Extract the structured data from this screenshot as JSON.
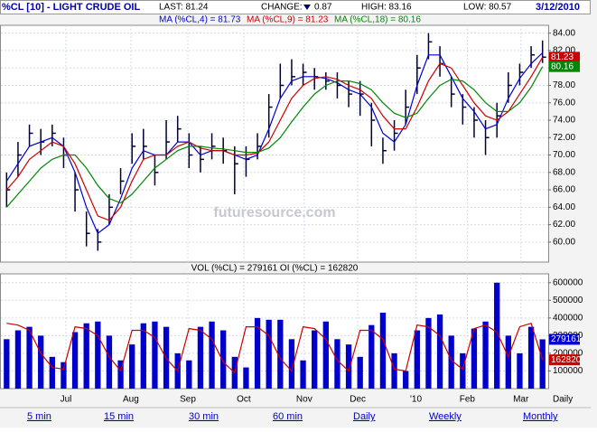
{
  "chart_data": [
    {
      "type": "ohlc",
      "title": "%CL [10] - LIGHT CRUDE OIL",
      "header": [
        "LAST: 81.24",
        "CHANGE:",
        "0.87",
        "HIGH: 83.16",
        "LOW: 80.57",
        "3/12/2010"
      ],
      "watermark": "futuresource.com",
      "color": "#000033",
      "high": [
        68,
        71.5,
        73.5,
        73,
        73.5,
        72,
        68,
        63.5,
        61.5,
        65.5,
        68.5,
        72.5,
        73,
        70,
        74,
        74.5,
        72.5,
        71,
        72.5,
        72,
        71,
        71,
        72.5,
        77,
        80.5,
        81,
        80.5,
        80,
        79.5,
        79.5,
        78.5,
        78.5,
        76,
        72,
        74,
        77.5,
        81.5,
        84,
        82.5,
        79,
        77,
        75.5,
        74,
        76,
        79.5,
        80.5,
        82.5,
        83.16
      ],
      "low": [
        64,
        67.5,
        71,
        70,
        71,
        68.5,
        63.5,
        59.5,
        59,
        62,
        65.5,
        69,
        69.5,
        66.5,
        69.5,
        71.5,
        68.5,
        68,
        69.5,
        69,
        65.5,
        67.5,
        69.5,
        72,
        76.5,
        78,
        78,
        77.5,
        77.5,
        76.5,
        75.5,
        74.5,
        71,
        69,
        70.5,
        73.5,
        77,
        81,
        79,
        75.5,
        73.5,
        72,
        70,
        72,
        76,
        78,
        80,
        80.57
      ],
      "close": [
        66,
        70,
        72.5,
        71.5,
        72.5,
        70,
        66,
        61,
        60,
        64,
        67,
        71,
        71,
        68,
        71.5,
        73,
        70,
        69.5,
        71,
        70.5,
        69,
        69.5,
        71,
        75.5,
        78,
        79,
        79.5,
        79,
        78.5,
        78,
        77,
        77,
        74,
        70.5,
        72.5,
        75.5,
        80,
        83,
        80.5,
        77,
        75.5,
        74,
        72,
        74.5,
        78,
        79.5,
        81.5,
        81.24
      ],
      "series": [
        {
          "name": "MA (%CL,4) = 81.73",
          "color": "#0000cc",
          "values": [
            67,
            69,
            71,
            71.5,
            72,
            71,
            68,
            64,
            61,
            62,
            65,
            68.5,
            70.5,
            70,
            70,
            71.5,
            71.5,
            70,
            70.5,
            70.5,
            70,
            69.5,
            70,
            73,
            76.5,
            78.5,
            79,
            79,
            78.8,
            78.3,
            77.5,
            77,
            75.5,
            72.5,
            71.5,
            73.5,
            78,
            81.5,
            81.5,
            79,
            76.5,
            75,
            73,
            73.5,
            76.5,
            78.8,
            80.5,
            81.73
          ]
        },
        {
          "name": "MA (%CL,9) = 81.23",
          "color": "#cc0000",
          "last": 81.23,
          "values": [
            66,
            67.5,
            69.5,
            70.5,
            71.5,
            71,
            69,
            66,
            63,
            62.5,
            64,
            67,
            69.5,
            70,
            70,
            71,
            71.5,
            70.8,
            70.5,
            70.5,
            70,
            70,
            70.2,
            71.5,
            74,
            76.5,
            78,
            78.8,
            79,
            78.7,
            78,
            77.5,
            76.5,
            74.5,
            73,
            73,
            75.5,
            78.5,
            80.5,
            80,
            78,
            76,
            74.5,
            74,
            75,
            77,
            79,
            81.23
          ]
        },
        {
          "name": "MA (%CL,18) = 80.16",
          "color": "#008800",
          "last": 80.16,
          "values": [
            64,
            65.5,
            67,
            68.5,
            69.5,
            70,
            70,
            68.5,
            66.5,
            65,
            64.5,
            65.5,
            67,
            68.5,
            69.5,
            70.5,
            71,
            71,
            70.8,
            70.7,
            70.5,
            70.3,
            70.3,
            70.8,
            72,
            73.8,
            75.5,
            77,
            78,
            78.5,
            78.5,
            78.2,
            77.5,
            76,
            74.8,
            74.3,
            74.8,
            76.5,
            78,
            78.7,
            78.5,
            77.5,
            76,
            75,
            75,
            76,
            77.8,
            80.16
          ]
        }
      ],
      "ylim": [
        57.7,
        84.9
      ],
      "yticks": [
        {
          "value": 60,
          "label": "60.00"
        },
        {
          "value": 62,
          "label": "62.00"
        },
        {
          "value": 64,
          "label": "64.00"
        },
        {
          "value": 66,
          "label": "66.00"
        },
        {
          "value": 68,
          "label": "68.00"
        },
        {
          "value": 70,
          "label": "70.00"
        },
        {
          "value": 72,
          "label": "72.00"
        },
        {
          "value": 74,
          "label": "74.00"
        },
        {
          "value": 76,
          "label": "76.00"
        },
        {
          "value": 78,
          "label": "78.00"
        },
        {
          "value": 80,
          "label": "80.00"
        },
        {
          "value": 82,
          "label": "82.00"
        },
        {
          "value": 84,
          "label": "84.00"
        }
      ],
      "xlim": [
        -0.5,
        47.5
      ],
      "grid": true
    },
    {
      "type": "bar",
      "title": "VOL (%CL) = 279161 OI (%CL) = 162820",
      "series": [
        {
          "type": "bar",
          "color": "#0000cc",
          "last": 279161,
          "values": [
            280000,
            330000,
            350000,
            300000,
            180000,
            150000,
            320000,
            370000,
            380000,
            300000,
            160000,
            250000,
            370000,
            380000,
            350000,
            200000,
            160000,
            350000,
            380000,
            330000,
            180000,
            120000,
            400000,
            390000,
            390000,
            280000,
            160000,
            330000,
            380000,
            280000,
            250000,
            180000,
            360000,
            430000,
            200000,
            100000,
            330000,
            400000,
            420000,
            300000,
            200000,
            340000,
            380000,
            600000,
            300000,
            200000,
            350000,
            279161
          ]
        },
        {
          "type": "line",
          "color": "#cc0000",
          "last": 162820,
          "values": [
            370000,
            360000,
            330000,
            200000,
            120000,
            110000,
            350000,
            340000,
            300000,
            180000,
            100000,
            330000,
            330000,
            290000,
            170000,
            100000,
            340000,
            330000,
            280000,
            150000,
            90000,
            350000,
            350000,
            300000,
            170000,
            100000,
            350000,
            340000,
            280000,
            160000,
            100000,
            330000,
            330000,
            280000,
            110000,
            100000,
            360000,
            350000,
            300000,
            160000,
            110000,
            340000,
            360000,
            320000,
            180000,
            350000,
            370000,
            162820
          ]
        }
      ],
      "ylim": [
        0,
        650000
      ],
      "yticks": [
        100000,
        200000,
        300000,
        400000,
        500000,
        600000
      ],
      "xlim": [
        -0.5,
        47.5
      ],
      "xticks": [
        {
          "value": 5.2,
          "label": "Jul"
        },
        {
          "value": 10.9,
          "label": "Aug"
        },
        {
          "value": 15.9,
          "label": "Sep"
        },
        {
          "value": 20.8,
          "label": "Oct"
        },
        {
          "value": 26.1,
          "label": "Nov"
        },
        {
          "value": 30.8,
          "label": "Dec"
        },
        {
          "value": 35.9,
          "label": "'10"
        },
        {
          "value": 40.4,
          "label": "Feb"
        },
        {
          "value": 45.1,
          "label": "Mar"
        }
      ],
      "xlabel": "Daily",
      "grid": true
    }
  ],
  "links": [
    "5 min",
    "15 min",
    "30 min",
    "60 min",
    "Daily",
    "Weekly",
    "Monthly"
  ]
}
